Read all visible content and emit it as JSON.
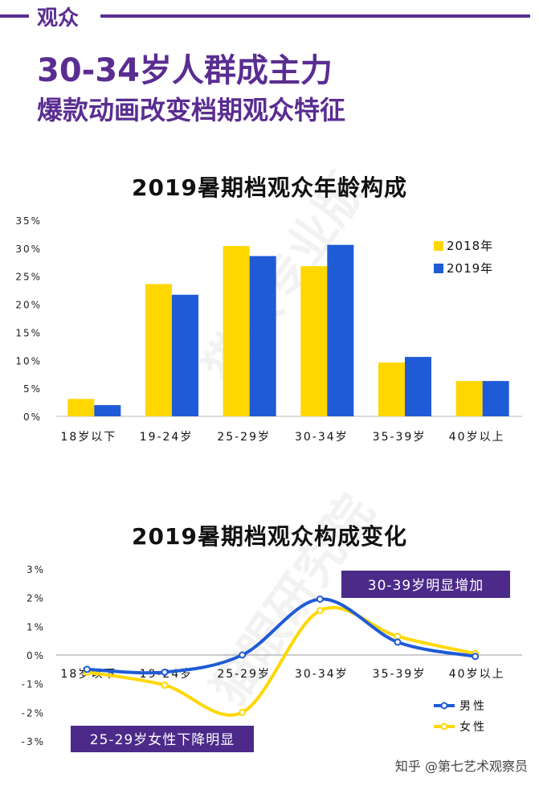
{
  "section": {
    "label": "观众"
  },
  "headline": "30-34岁人群成主力",
  "subheadline": "爆款动画改变档期观众特征",
  "watermarks": [
    "猫眼专业版",
    "猫眼研究院"
  ],
  "footer": "知乎 @第七艺术观察员",
  "colors": {
    "purple": "#5a2d91",
    "yellow": "#ffd700",
    "blue": "#1f5bd6",
    "callout": "#4b2a8a"
  },
  "chart_data": [
    {
      "type": "bar",
      "title": "2019暑期档观众年龄构成",
      "categories": [
        "18岁以下",
        "19-24岁",
        "25-29岁",
        "30-34岁",
        "35-39岁",
        "40岁以上"
      ],
      "series": [
        {
          "name": "2018年",
          "color": "#ffd700",
          "values": [
            3.1,
            23.6,
            30.4,
            26.8,
            9.6,
            6.3
          ]
        },
        {
          "name": "2019年",
          "color": "#1f5bd6",
          "values": [
            2.0,
            21.7,
            28.6,
            30.6,
            10.6,
            6.3
          ]
        }
      ],
      "yticks": [
        "0%",
        "5%",
        "10%",
        "15%",
        "20%",
        "25%",
        "30%",
        "35%"
      ],
      "ylim": [
        0,
        35
      ],
      "legend": "right"
    },
    {
      "type": "line",
      "title": "2019暑期档观众构成变化",
      "categories": [
        "18岁以下",
        "19-24岁",
        "25-29岁",
        "30-34岁",
        "35-39岁",
        "40岁以上"
      ],
      "series": [
        {
          "name": "男性",
          "color": "#1f5bd6",
          "values": [
            -0.5,
            -0.6,
            0.0,
            1.95,
            0.45,
            -0.05
          ]
        },
        {
          "name": "女性",
          "color": "#ffd700",
          "values": [
            -0.6,
            -1.05,
            -2.0,
            1.55,
            0.65,
            0.05
          ]
        }
      ],
      "yticks": [
        "3%",
        "2%",
        "1%",
        "0%",
        "-1%",
        "-2%",
        "-3%"
      ],
      "ylim": [
        -3,
        3
      ],
      "legend": "bottom-right",
      "annotations": [
        "30-39岁明显增加",
        "25-29岁女性下降明显"
      ]
    }
  ]
}
